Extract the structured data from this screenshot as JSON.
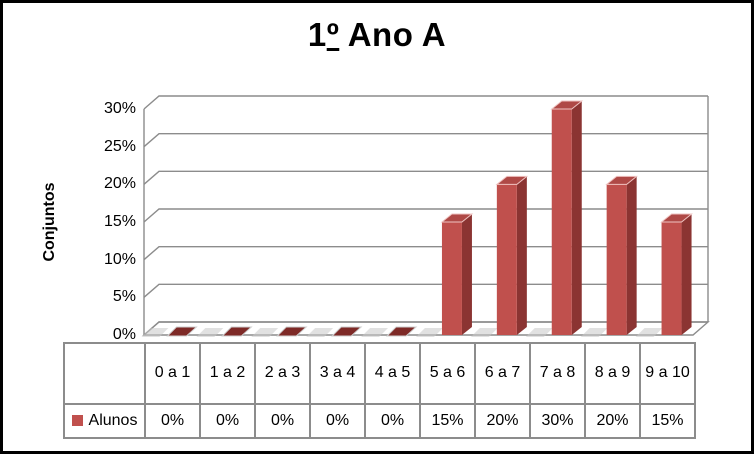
{
  "chart_data": {
    "type": "bar",
    "style": "3d-clustered-column",
    "title": "1º Ano A",
    "ylabel": "Conjuntos",
    "xlabel": "",
    "categories": [
      "0 a 1",
      "1 a 2",
      "2 a 3",
      "3 a 4",
      "4 a 5",
      "5 a 6",
      "6 a 7",
      "7 a 8",
      "8 a 9",
      "9 a 10"
    ],
    "series": [
      {
        "name": "Alunos",
        "values_pct": [
          0,
          0,
          0,
          0,
          0,
          15,
          20,
          30,
          20,
          15
        ],
        "labels": [
          "0%",
          "0%",
          "0%",
          "0%",
          "0%",
          "15%",
          "20%",
          "30%",
          "20%",
          "15%"
        ]
      }
    ],
    "ylim_pct": [
      0,
      30
    ],
    "ytick_step_pct": 5,
    "ytick_labels": [
      "0%",
      "5%",
      "10%",
      "15%",
      "20%",
      "25%",
      "30%"
    ],
    "grid": true,
    "legend_position": "bottom-table-left",
    "colors": {
      "bar_front": "#C0504D",
      "bar_side": "#8B3432",
      "bar_top": "#AF4946",
      "bar_top_highlight": "#EFC3C1",
      "bar_zero_top": "#7E2A27",
      "grid_line": "#8C8C8C",
      "table_border": "#8C8C8C",
      "floor_shadow": "#C8C8C8",
      "text": "#000000",
      "frame_border": "#000000",
      "background": "#FFFFFF"
    }
  }
}
